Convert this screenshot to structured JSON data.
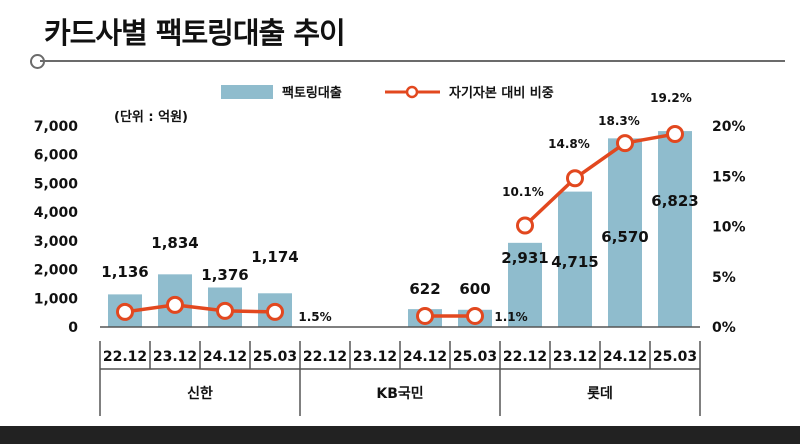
{
  "title": "카드사별 팩토링대출 추이",
  "unit_label": "(단위 : 억원)",
  "legend": {
    "bar_label": "팩토링대출",
    "line_label": "자기자본 대비 비중"
  },
  "colors": {
    "bar": "#8fbccd",
    "line": "#e2481f",
    "axis": "#555555"
  },
  "chart_data": {
    "type": "bar",
    "categories": [
      "22.12",
      "23.12",
      "24.12",
      "25.03",
      "22.12",
      "23.12",
      "24.12",
      "25.03",
      "22.12",
      "23.12",
      "24.12",
      "25.03"
    ],
    "groups": [
      {
        "name": "신한",
        "span": [
          0,
          3
        ]
      },
      {
        "name": "KB국민",
        "span": [
          4,
          7
        ]
      },
      {
        "name": "롯데",
        "span": [
          8,
          11
        ]
      }
    ],
    "series": [
      {
        "name": "팩토링대출",
        "type": "bar",
        "axis": "left",
        "values": [
          1136,
          1834,
          1376,
          1174,
          null,
          null,
          622,
          600,
          2931,
          4715,
          6570,
          6823
        ],
        "labels": [
          "1,136",
          "1,834",
          "1,376",
          "1,174",
          "",
          "",
          "622",
          "600",
          "2,931",
          "4,715",
          "6,570",
          "6,823"
        ]
      },
      {
        "name": "자기자본 대비 비중",
        "type": "line",
        "axis": "right",
        "values": [
          1.5,
          2.2,
          1.6,
          1.5,
          null,
          null,
          1.1,
          1.1,
          10.1,
          14.8,
          18.3,
          19.2
        ],
        "labels": [
          "",
          "",
          "",
          "1.5%",
          "",
          "",
          "",
          "1.1%",
          "10.1%",
          "14.8%",
          "18.3%",
          "19.2%"
        ]
      }
    ],
    "ylim": [
      0,
      7000
    ],
    "yticks": [
      "0",
      "1,000",
      "2,000",
      "3,000",
      "4,000",
      "5,000",
      "6,000",
      "7,000"
    ],
    "y2lim": [
      0,
      20
    ],
    "y2ticks": [
      "0%",
      "5%",
      "10%",
      "15%",
      "20%"
    ]
  }
}
